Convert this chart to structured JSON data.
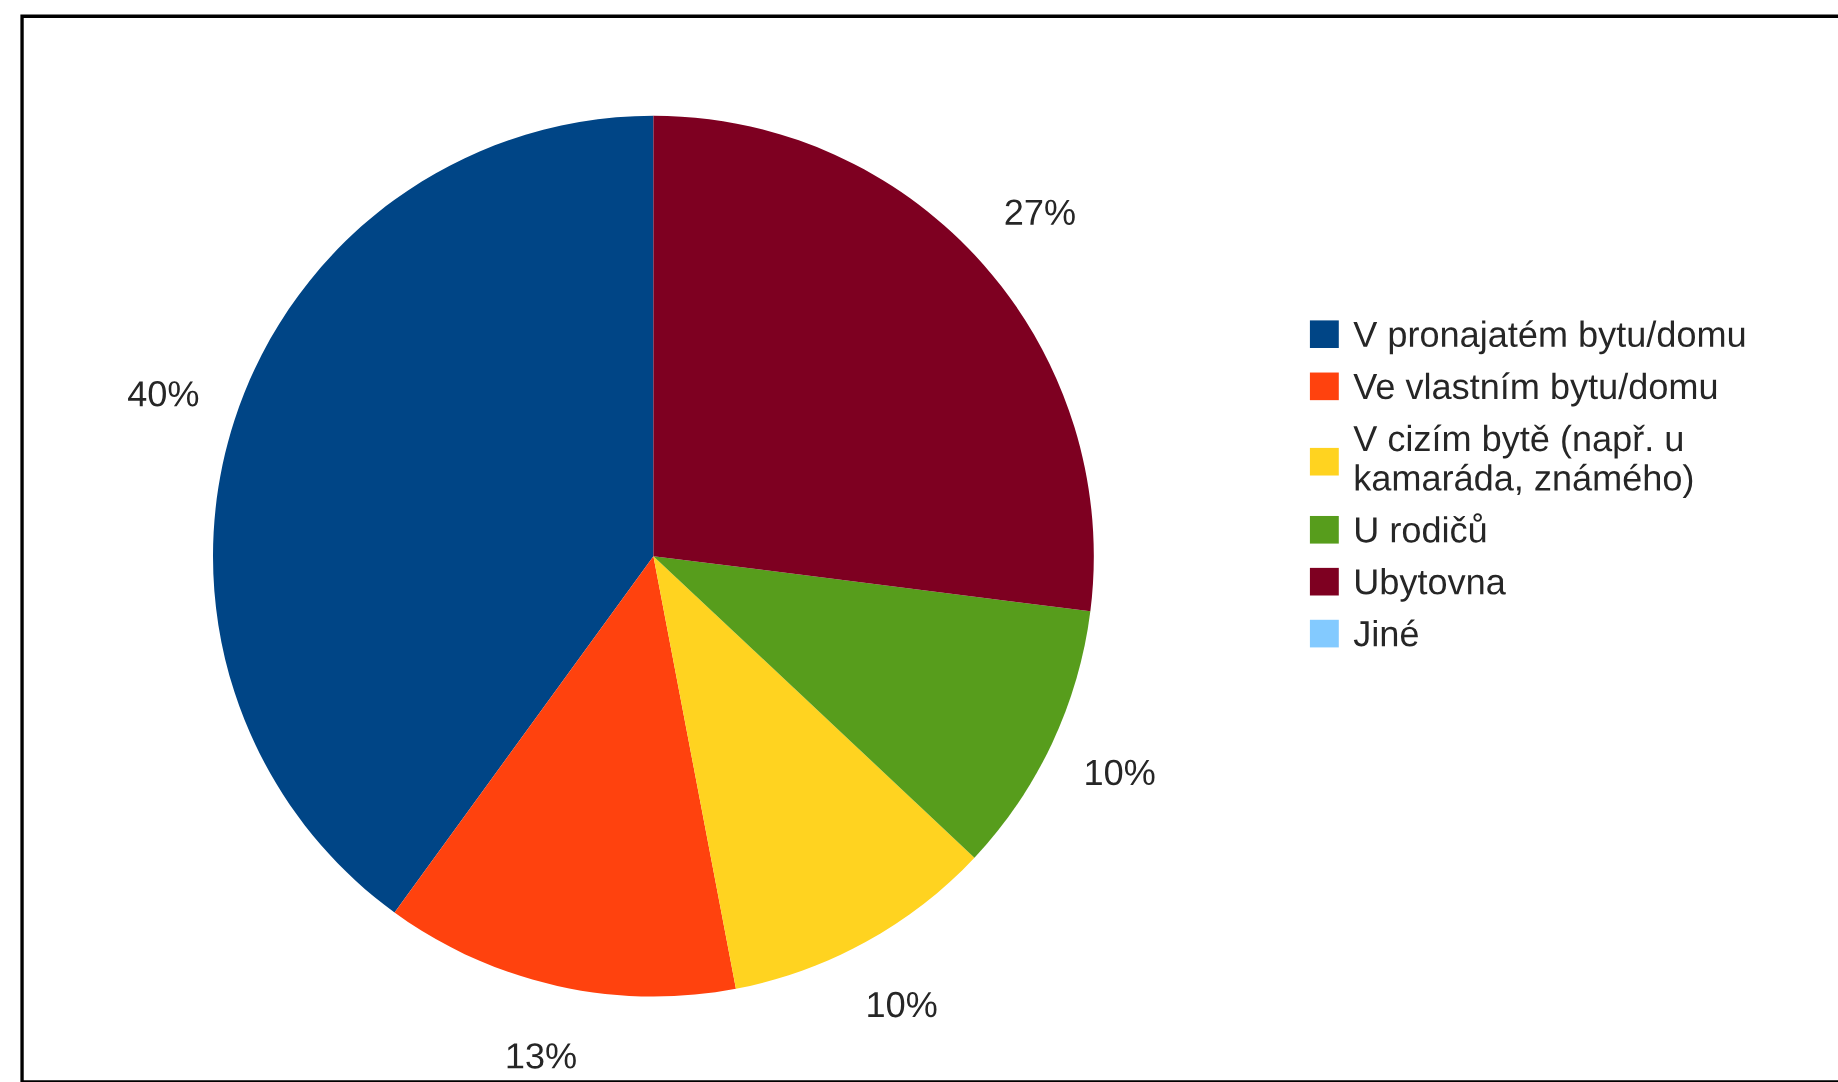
{
  "chart_data": {
    "type": "pie",
    "categories": [
      "V pronajatém bytu/domu",
      "Ve vlastním bytu/domu",
      "V cizím bytě (např. u kamaráda, známého)",
      "U rodičů",
      "Ubytovna",
      "Jiné"
    ],
    "values": [
      40,
      13,
      10,
      10,
      27,
      0
    ],
    "colors": [
      "#004586",
      "#ff420e",
      "#ffd320",
      "#579d1c",
      "#7e0021",
      "#83caff"
    ],
    "value_labels": [
      "40%",
      "13%",
      "10%",
      "10%",
      "27%",
      null
    ],
    "legend": "right"
  }
}
